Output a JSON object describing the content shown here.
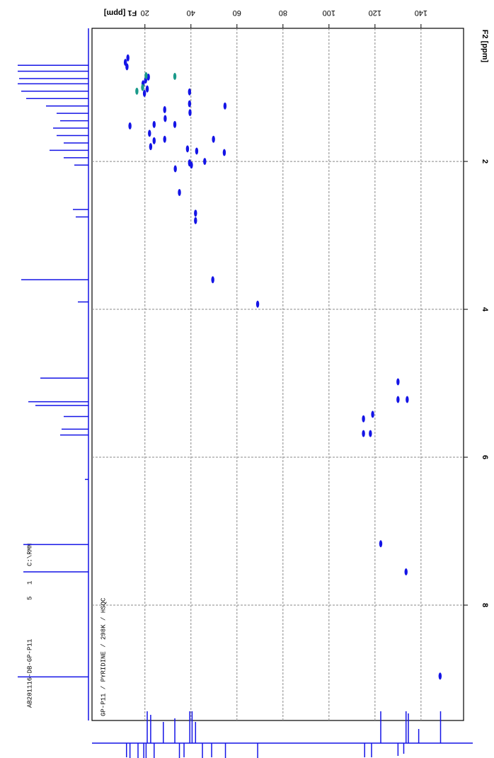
{
  "chart_data": {
    "type": "scatter",
    "xlabel": "F1 [ppm]",
    "ylabel": "F2 [ppm]",
    "annotation": "GP-P11 / PYRIDINE / 298K / HSQC",
    "dataset_info": [
      "AB201116-DB-GP-P11",
      "5",
      "1",
      "C:\\RMN"
    ],
    "xlim": [
      -3,
      158.5
    ],
    "xticks": [
      20,
      40,
      60,
      80,
      100,
      120,
      140
    ],
    "ylim": [
      0.2,
      9.56
    ],
    "yticks": [
      2,
      4,
      6,
      8
    ],
    "grid": true,
    "series": [
      {
        "color": "#1414e6",
        "x": [
          11.5,
          12.2,
          12.6,
          19.2,
          20.3,
          21.0,
          19.8,
          21.5,
          39.4,
          39.4,
          39.6,
          28.6,
          28.8,
          33.0,
          24.0,
          22.0,
          24.0,
          22.5,
          28.6,
          54.8,
          49.8,
          13.5,
          38.5,
          39.4,
          40.2,
          42.5,
          46.0,
          54.5,
          33.2,
          35.0,
          42.0,
          42.0,
          49.5,
          69.0,
          130.0,
          130.0,
          134.0,
          119.0,
          115.0,
          115.0,
          118.0,
          122.5,
          133.5,
          148.3
        ],
        "y": [
          0.66,
          0.72,
          0.6,
          0.95,
          0.9,
          1.02,
          1.08,
          0.86,
          1.06,
          1.22,
          1.34,
          1.3,
          1.42,
          1.5,
          1.5,
          1.62,
          1.72,
          1.8,
          1.7,
          1.25,
          1.7,
          1.52,
          1.83,
          2.02,
          2.05,
          1.86,
          2.0,
          1.88,
          2.1,
          2.42,
          2.7,
          2.8,
          3.6,
          3.93,
          4.98,
          5.22,
          5.22,
          5.42,
          5.48,
          5.68,
          5.68,
          7.17,
          7.55,
          8.96
        ]
      },
      {
        "color": "#1a9a8a",
        "x": [
          33.0,
          19.0,
          16.5,
          20.5
        ],
        "y": [
          0.85,
          1.0,
          1.05,
          0.84
        ]
      }
    ],
    "f2_projection": {
      "color": "#1414e6",
      "x": [
        0.7,
        0.78,
        0.88,
        0.95,
        1.05,
        1.15,
        1.25,
        1.35,
        1.45,
        1.55,
        1.65,
        1.75,
        1.85,
        1.95,
        2.05,
        2.65,
        2.75,
        3.6,
        3.9,
        4.93,
        5.25,
        5.3,
        5.45,
        5.62,
        5.7,
        6.3,
        7.18,
        7.55,
        8.97
      ],
      "values": [
        100,
        100,
        98,
        100,
        95,
        88,
        60,
        45,
        40,
        50,
        45,
        35,
        55,
        35,
        20,
        22,
        18,
        95,
        15,
        68,
        85,
        75,
        35,
        38,
        40,
        5,
        92,
        92,
        100
      ]
    },
    "f1_projection": {
      "color": "#1414e6",
      "x": [
        21,
        22.5,
        28,
        33,
        39.5,
        40.5,
        42,
        122.5,
        133.5,
        134.5,
        139,
        148.5,
        12,
        13.5,
        17,
        19.5,
        20.5,
        24,
        35,
        37,
        45,
        49,
        55,
        69,
        115.5,
        118.5,
        130,
        132.5
      ],
      "values": [
        45,
        40,
        30,
        35,
        45,
        45,
        30,
        45,
        45,
        42,
        20,
        45,
        -20,
        -22,
        -25,
        -25,
        -25,
        -28,
        -25,
        -20,
        -25,
        -20,
        -28,
        -22,
        -20,
        -20,
        -18,
        -15
      ]
    }
  }
}
